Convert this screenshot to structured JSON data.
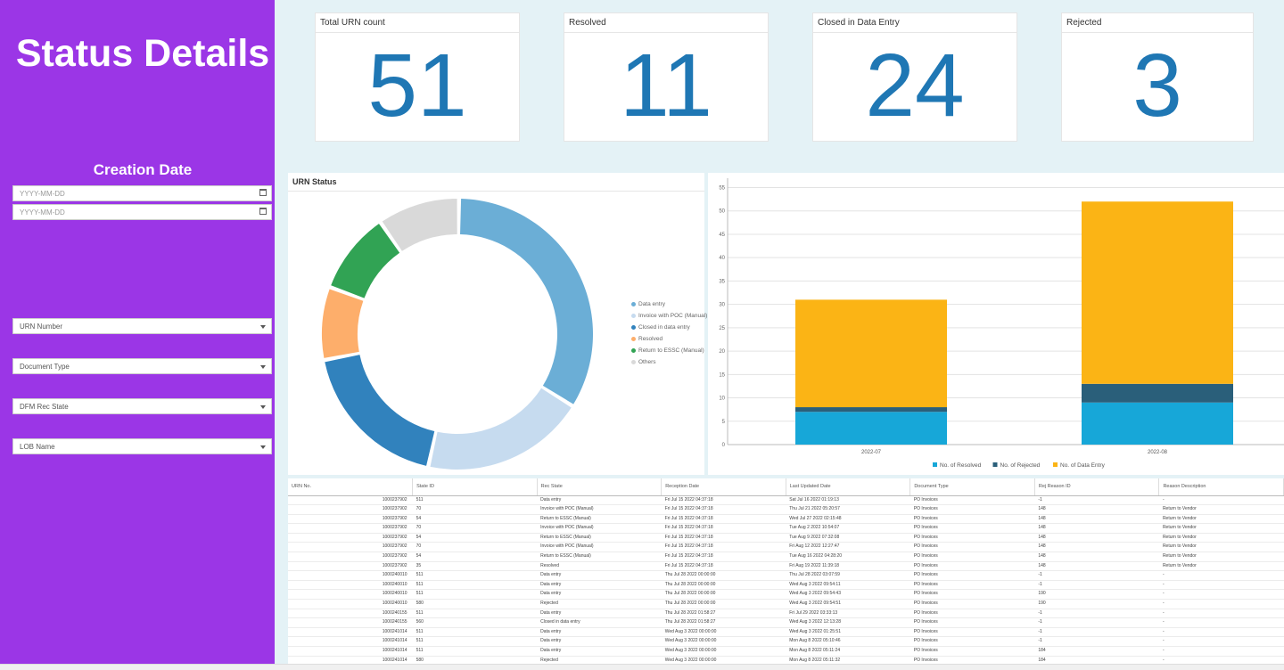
{
  "sidebar": {
    "title": "Status Details",
    "creation_date_label": "Creation Date",
    "date_from_placeholder": "YYYY-MM-DD",
    "date_to_placeholder": "YYYY-MM-DD",
    "filters": [
      "URN Number",
      "Document Type",
      "DFM Rec State",
      "LOB Name"
    ]
  },
  "kpis": [
    {
      "title": "Total URN count",
      "value": "51"
    },
    {
      "title": "Resolved",
      "value": "11"
    },
    {
      "title": "Closed in Data Entry",
      "value": "24"
    },
    {
      "title": "Rejected",
      "value": "3"
    }
  ],
  "donut_panel": {
    "title": "URN Status",
    "legend": [
      {
        "label": "Data entry",
        "color": "#6baed6"
      },
      {
        "label": "Invoice with POC (Manual)",
        "color": "#c6dbef"
      },
      {
        "label": "Closed in data entry",
        "color": "#3182bd"
      },
      {
        "label": "Resolved",
        "color": "#fdae6b"
      },
      {
        "label": "Return to ESSC (Manual)",
        "color": "#31a354"
      },
      {
        "label": "Others",
        "color": "#d9d9d9"
      }
    ]
  },
  "chart_data": [
    {
      "type": "pie",
      "title": "URN Status",
      "categories": [
        "Data entry",
        "Invoice with POC (Manual)",
        "Closed in data entry",
        "Resolved",
        "Return to ESSC (Manual)",
        "Others"
      ],
      "values": [
        31,
        18,
        17,
        8,
        9,
        9
      ],
      "colors": [
        "#6baed6",
        "#c6dbef",
        "#3182bd",
        "#fdae6b",
        "#31a354",
        "#d9d9d9"
      ]
    },
    {
      "type": "bar",
      "stacked": true,
      "categories": [
        "2022-07",
        "2022-08"
      ],
      "series": [
        {
          "name": "No. of Resolved",
          "values": [
            7,
            9
          ],
          "color": "#17a7d8"
        },
        {
          "name": "No. of Rejected",
          "values": [
            1,
            4
          ],
          "color": "#2a5f7a"
        },
        {
          "name": "No. of Data Entry",
          "values": [
            23,
            39
          ],
          "color": "#fbb415"
        }
      ],
      "ylim": [
        0,
        57
      ],
      "yticks": [
        0,
        5,
        10,
        15,
        20,
        25,
        30,
        35,
        40,
        45,
        50,
        55
      ],
      "grid": true,
      "legend": "bottom"
    }
  ],
  "table": {
    "columns": [
      "URN No.",
      "State ID",
      "Rec State",
      "Reception Date",
      "Last Updated Date",
      "Document Type",
      "Rej Reason ID",
      "Reason Description"
    ],
    "rows": [
      [
        "1000237902",
        "511",
        "Data entry",
        "Fri Jul 15 2022 04:37:18",
        "Sat Jul 16 2022 01:19:13",
        "PO Invoices",
        "-1",
        "-"
      ],
      [
        "1000237902",
        "70",
        "Invoice with POC (Manual)",
        "Fri Jul 15 2022 04:37:18",
        "Thu Jul 21 2022 05:20:57",
        "PO Invoices",
        "148",
        "Return to Vendor"
      ],
      [
        "1000237902",
        "54",
        "Return to ESSC (Manual)",
        "Fri Jul 15 2022 04:37:18",
        "Wed Jul 27 2022 02:15:48",
        "PO Invoices",
        "148",
        "Return to Vendor"
      ],
      [
        "1000237902",
        "70",
        "Invoice with POC (Manual)",
        "Fri Jul 15 2022 04:37:18",
        "Tue Aug 2 2022 10:54:07",
        "PO Invoices",
        "148",
        "Return to Vendor"
      ],
      [
        "1000237902",
        "54",
        "Return to ESSC (Manual)",
        "Fri Jul 15 2022 04:37:18",
        "Tue Aug 9 2022 07:32:08",
        "PO Invoices",
        "148",
        "Return to Vendor"
      ],
      [
        "1000237902",
        "70",
        "Invoice with POC (Manual)",
        "Fri Jul 15 2022 04:37:18",
        "Fri Aug 12 2022 12:27:47",
        "PO Invoices",
        "148",
        "Return to Vendor"
      ],
      [
        "1000237902",
        "54",
        "Return to ESSC (Manual)",
        "Fri Jul 15 2022 04:37:18",
        "Tue Aug 16 2022 04:28:20",
        "PO Invoices",
        "148",
        "Return to Vendor"
      ],
      [
        "1000237902",
        "35",
        "Resolved",
        "Fri Jul 15 2022 04:37:18",
        "Fri Aug 19 2022 11:39:18",
        "PO Invoices",
        "148",
        "Return to Vendor"
      ],
      [
        "1000240010",
        "511",
        "Data entry",
        "Thu Jul 28 2022 00:00:00",
        "Thu Jul 28 2022 03:07:59",
        "PO Invoices",
        "-1",
        "-"
      ],
      [
        "1000240010",
        "511",
        "Data entry",
        "Thu Jul 28 2022 00:00:00",
        "Wed Aug 3 2022 09:54:11",
        "PO Invoices",
        "-1",
        "-"
      ],
      [
        "1000240010",
        "511",
        "Data entry",
        "Thu Jul 28 2022 00:00:00",
        "Wed Aug 3 2022 09:54:43",
        "PO Invoices",
        "190",
        "-"
      ],
      [
        "1000240010",
        "580",
        "Rejected",
        "Thu Jul 28 2022 00:00:00",
        "Wed Aug 3 2022 09:54:51",
        "PO Invoices",
        "190",
        "-"
      ],
      [
        "1000240155",
        "511",
        "Data entry",
        "Thu Jul 28 2022 01:58:27",
        "Fri Jul 29 2022 03:33:13",
        "PO Invoices",
        "-1",
        "-"
      ],
      [
        "1000240155",
        "560",
        "Closed in data entry",
        "Thu Jul 28 2022 01:58:27",
        "Wed Aug 3 2022 12:13:28",
        "PO Invoices",
        "-1",
        "-"
      ],
      [
        "1000241014",
        "511",
        "Data entry",
        "Wed Aug 3 2022 00:00:00",
        "Wed Aug 3 2022 01:25:51",
        "PO Invoices",
        "-1",
        "-"
      ],
      [
        "1000241014",
        "511",
        "Data entry",
        "Wed Aug 3 2022 00:00:00",
        "Mon Aug 8 2022 05:10:46",
        "PO Invoices",
        "-1",
        "-"
      ],
      [
        "1000241014",
        "511",
        "Data entry",
        "Wed Aug 3 2022 00:00:00",
        "Mon Aug 8 2022 05:11:24",
        "PO Invoices",
        "184",
        "-"
      ],
      [
        "1000241014",
        "580",
        "Rejected",
        "Wed Aug 3 2022 00:00:00",
        "Mon Aug 8 2022 05:11:32",
        "PO Invoices",
        "184",
        "-"
      ],
      [
        "1000241088",
        "511",
        "Data entry",
        "Wed Aug 3 2022 01:07:38",
        "Wed Aug 3 2022 01:28:15",
        "PO Invoices",
        "-1",
        "-"
      ],
      [
        "1000241088",
        "560",
        "Closed in data entry",
        "Wed Aug 3 2022 01:07:38",
        "Mon Aug 8 2022 06:20:30",
        "PO Invoices",
        "-1",
        "-"
      ]
    ]
  }
}
